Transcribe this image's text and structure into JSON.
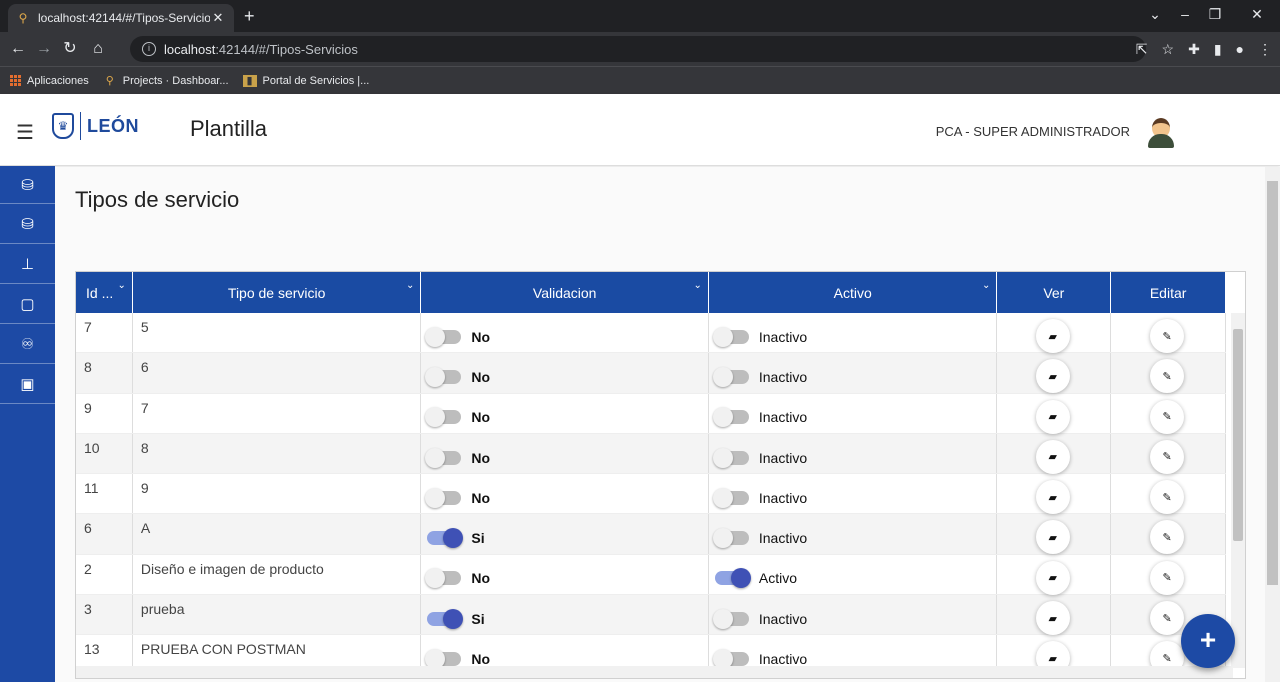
{
  "browser": {
    "tab_title": "localhost:42144/#/Tipos-Servicio",
    "url_host": "localhost",
    "url_rest": ":42144/#/Tipos-Servicios",
    "bookmarks": [
      "Aplicaciones",
      "Projects · Dashboar...",
      "Portal de Servicios |..."
    ]
  },
  "header": {
    "logo_text": "LEÓN",
    "app_name": "Plantilla",
    "user": "PCA - SUPER ADMINISTRADOR"
  },
  "sidebar": {
    "icons": [
      "database-icon",
      "database-icon",
      "sitemap-icon",
      "file-icon",
      "handshake-icon",
      "image-icon"
    ]
  },
  "page": {
    "title": "Tipos de servicio"
  },
  "table": {
    "columns": [
      "Id ...",
      "Tipo de servicio",
      "Validacion",
      "Activo",
      "Ver",
      "Editar"
    ],
    "rows": [
      {
        "id": "7",
        "tipo": "5",
        "validacion": "No",
        "validacion_on": false,
        "activo": "Inactivo",
        "activo_on": false
      },
      {
        "id": "8",
        "tipo": "6",
        "validacion": "No",
        "validacion_on": false,
        "activo": "Inactivo",
        "activo_on": false
      },
      {
        "id": "9",
        "tipo": "7",
        "validacion": "No",
        "validacion_on": false,
        "activo": "Inactivo",
        "activo_on": false
      },
      {
        "id": "10",
        "tipo": "8",
        "validacion": "No",
        "validacion_on": false,
        "activo": "Inactivo",
        "activo_on": false
      },
      {
        "id": "11",
        "tipo": "9",
        "validacion": "No",
        "validacion_on": false,
        "activo": "Inactivo",
        "activo_on": false
      },
      {
        "id": "6",
        "tipo": "A",
        "validacion": "Si",
        "validacion_on": true,
        "activo": "Inactivo",
        "activo_on": false
      },
      {
        "id": "2",
        "tipo": "Diseño e imagen de producto",
        "validacion": "No",
        "validacion_on": false,
        "activo": "Activo",
        "activo_on": true
      },
      {
        "id": "3",
        "tipo": "prueba",
        "validacion": "Si",
        "validacion_on": true,
        "activo": "Inactivo",
        "activo_on": false
      },
      {
        "id": "13",
        "tipo": "PRUEBA CON POSTMAN",
        "validacion": "No",
        "validacion_on": false,
        "activo": "Inactivo",
        "activo_on": false
      }
    ]
  },
  "fab": {
    "label": "+"
  },
  "colors": {
    "primary": "#1d4aa5",
    "toggle_on": "#3f51b5"
  }
}
